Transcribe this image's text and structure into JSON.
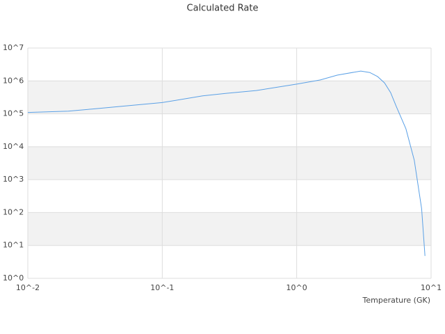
{
  "chart_data": {
    "type": "line",
    "title": "Calculated Rate",
    "x_label": "Temperature (GK)",
    "x_scale": "log",
    "y_scale": "log",
    "grid": true,
    "bands": true,
    "xlim": [
      0.01,
      10
    ],
    "ylim": [
      1,
      10000000
    ],
    "xticks": [
      {
        "value": 0.01,
        "label": "10^-2"
      },
      {
        "value": 0.1,
        "label": "10^-1"
      },
      {
        "value": 1,
        "label": "10^0"
      },
      {
        "value": 10,
        "label": "10^1"
      }
    ],
    "yticks": [
      {
        "value": 1,
        "label": "10^0"
      },
      {
        "value": 10,
        "label": "10^1"
      },
      {
        "value": 100,
        "label": "10^2"
      },
      {
        "value": 1000,
        "label": "10^3"
      },
      {
        "value": 10000,
        "label": "10^4"
      },
      {
        "value": 100000,
        "label": "10^5"
      },
      {
        "value": 1000000,
        "label": "10^6"
      },
      {
        "value": 10000000,
        "label": "10^7"
      }
    ],
    "x": [
      0.01,
      0.02,
      0.03,
      0.05,
      0.1,
      0.2,
      0.3,
      0.5,
      1,
      1.5,
      2,
      3,
      3.5,
      4,
      4.5,
      5,
      5.5,
      6.5,
      7.5,
      8.5,
      9
    ],
    "series": [
      {
        "color": "#5aa0e6",
        "values": [
          110000,
          120000,
          140000,
          170000,
          220000,
          350000,
          420000,
          510000,
          800000,
          1070000,
          1500000,
          2000000,
          1800000,
          1350000,
          870000,
          440000,
          170000,
          35000,
          3900,
          130,
          4.8
        ]
      }
    ]
  }
}
